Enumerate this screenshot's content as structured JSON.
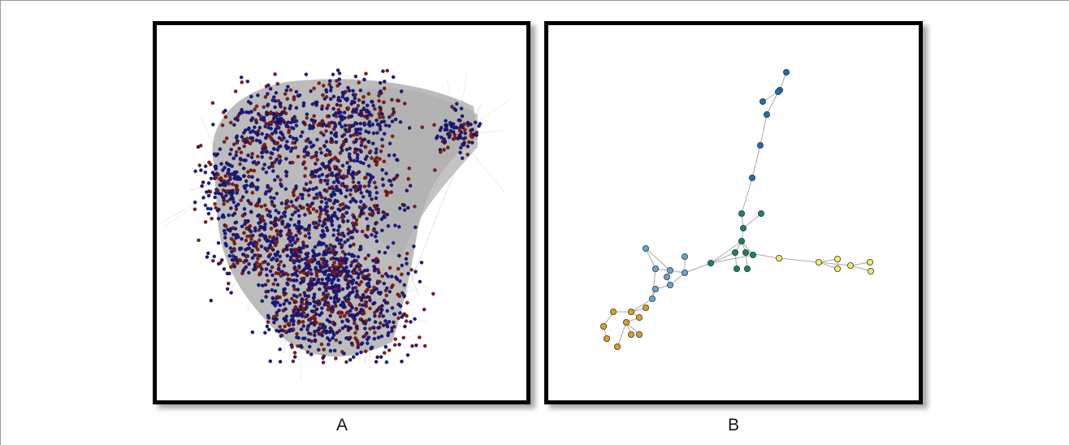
{
  "panels": [
    {
      "label": "A",
      "edge_color": "#b0b0b0",
      "node_colors": [
        "#1a1a8c",
        "#8b1a10"
      ]
    },
    {
      "label": "B",
      "edge_color": "#a8a8a8",
      "node_stroke": "#333333",
      "cluster_colors": {
        "dark-blue": "#1f6fb0",
        "green": "#128a5a",
        "light-blue": "#62a6d8",
        "orange": "#e0a01c",
        "yellow": "#f2ee58"
      }
    }
  ]
}
